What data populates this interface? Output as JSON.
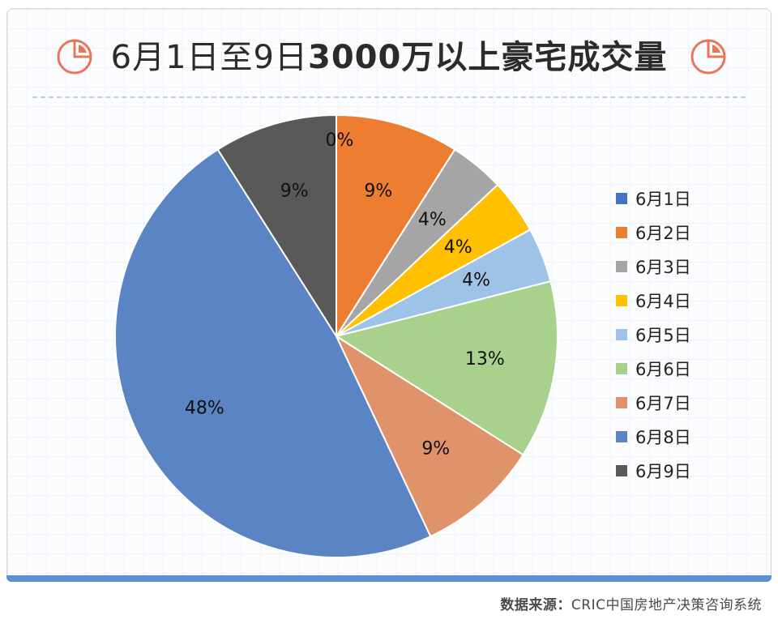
{
  "header": {
    "title_light": "6月1日至9日",
    "title_bold": "3000万以上豪宅成交量"
  },
  "chart_data": {
    "type": "pie",
    "title": "6月1日至9日3000万以上豪宅成交量",
    "categories": [
      "6月1日",
      "6月2日",
      "6月3日",
      "6月4日",
      "6月5日",
      "6月6日",
      "6月7日",
      "6月8日",
      "6月9日"
    ],
    "values": [
      0,
      9,
      4,
      4,
      4,
      13,
      9,
      48,
      9
    ],
    "labels": [
      "0%",
      "9%",
      "4%",
      "4%",
      "4%",
      "13%",
      "9%",
      "48%",
      "9%"
    ],
    "colors": [
      "#4472c4",
      "#ed7d31",
      "#a5a5a5",
      "#ffc000",
      "#9dc3e6",
      "#a9d18e",
      "#e0926a",
      "#5b84c4",
      "#595959"
    ],
    "legend_position": "right"
  },
  "footer": {
    "source_label": "数据来源：",
    "source_text": "CRIC中国房地产决策咨询系统"
  },
  "icons": {
    "title_icon": "pie-chart-icon",
    "icon_color": "#e8775a"
  }
}
